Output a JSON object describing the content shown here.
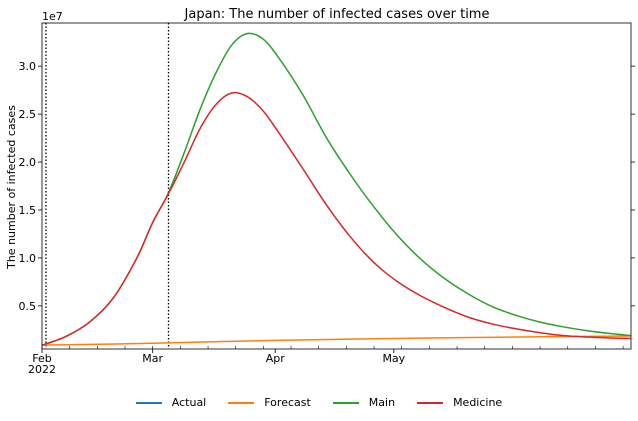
{
  "chart_data": {
    "type": "line",
    "title": "Japan: The number of infected cases over time",
    "xlabel": "",
    "ylabel": "The number of infected cases",
    "y_offset_label": "1e7",
    "x_range": [
      "2022-02-01",
      "2022-06-30"
    ],
    "ylim": [
      0.05,
      3.45
    ],
    "y_scale_factor": 10000000,
    "y_ticks": [
      0.5,
      1.0,
      1.5,
      2.0,
      2.5,
      3.0
    ],
    "x_ticks": [
      {
        "date": "2022-02-01",
        "label": "Feb",
        "sublabel": "2022"
      },
      {
        "date": "2022-03-01",
        "label": "Mar",
        "sublabel": ""
      },
      {
        "date": "2022-04-01",
        "label": "Apr",
        "sublabel": ""
      },
      {
        "date": "2022-05-01",
        "label": "May",
        "sublabel": ""
      }
    ],
    "vlines": [
      "2022-02-02",
      "2022-03-05"
    ],
    "legend_position": "bottom",
    "series": [
      {
        "name": "Actual",
        "color": "#1f77b4",
        "points": []
      },
      {
        "name": "Forecast",
        "color": "#ff7f0e",
        "points": [
          [
            "2022-02-01",
            0.09
          ],
          [
            "2022-03-01",
            0.11
          ],
          [
            "2022-04-01",
            0.14
          ],
          [
            "2022-05-01",
            0.16
          ],
          [
            "2022-06-01",
            0.175
          ],
          [
            "2022-06-30",
            0.185
          ]
        ]
      },
      {
        "name": "Main",
        "color": "#2ca02c",
        "points": [
          [
            "2022-02-01",
            0.09
          ],
          [
            "2022-02-07",
            0.18
          ],
          [
            "2022-02-13",
            0.33
          ],
          [
            "2022-02-19",
            0.58
          ],
          [
            "2022-02-25",
            1.0
          ],
          [
            "2022-03-01",
            1.37
          ],
          [
            "2022-03-05",
            1.68
          ],
          [
            "2022-03-09",
            2.1
          ],
          [
            "2022-03-13",
            2.55
          ],
          [
            "2022-03-17",
            2.93
          ],
          [
            "2022-03-21",
            3.22
          ],
          [
            "2022-03-25",
            3.34
          ],
          [
            "2022-03-29",
            3.28
          ],
          [
            "2022-04-02",
            3.08
          ],
          [
            "2022-04-08",
            2.7
          ],
          [
            "2022-04-14",
            2.25
          ],
          [
            "2022-04-20",
            1.87
          ],
          [
            "2022-04-26",
            1.53
          ],
          [
            "2022-05-02",
            1.23
          ],
          [
            "2022-05-08",
            0.98
          ],
          [
            "2022-05-14",
            0.78
          ],
          [
            "2022-05-20",
            0.62
          ],
          [
            "2022-05-26",
            0.49
          ],
          [
            "2022-06-01",
            0.4
          ],
          [
            "2022-06-07",
            0.33
          ],
          [
            "2022-06-13",
            0.28
          ],
          [
            "2022-06-19",
            0.24
          ],
          [
            "2022-06-25",
            0.21
          ],
          [
            "2022-06-30",
            0.19
          ]
        ]
      },
      {
        "name": "Medicine",
        "color": "#d62728",
        "points": [
          [
            "2022-02-01",
            0.09
          ],
          [
            "2022-02-07",
            0.18
          ],
          [
            "2022-02-13",
            0.33
          ],
          [
            "2022-02-19",
            0.58
          ],
          [
            "2022-02-25",
            1.0
          ],
          [
            "2022-03-01",
            1.37
          ],
          [
            "2022-03-05",
            1.67
          ],
          [
            "2022-03-09",
            2.0
          ],
          [
            "2022-03-13",
            2.35
          ],
          [
            "2022-03-17",
            2.6
          ],
          [
            "2022-03-21",
            2.72
          ],
          [
            "2022-03-25",
            2.68
          ],
          [
            "2022-03-29",
            2.53
          ],
          [
            "2022-04-02",
            2.3
          ],
          [
            "2022-04-08",
            1.93
          ],
          [
            "2022-04-14",
            1.55
          ],
          [
            "2022-04-20",
            1.22
          ],
          [
            "2022-04-26",
            0.95
          ],
          [
            "2022-05-02",
            0.75
          ],
          [
            "2022-05-08",
            0.6
          ],
          [
            "2022-05-14",
            0.48
          ],
          [
            "2022-05-20",
            0.38
          ],
          [
            "2022-05-26",
            0.31
          ],
          [
            "2022-06-01",
            0.26
          ],
          [
            "2022-06-07",
            0.22
          ],
          [
            "2022-06-13",
            0.19
          ],
          [
            "2022-06-19",
            0.175
          ],
          [
            "2022-06-25",
            0.165
          ],
          [
            "2022-06-30",
            0.16
          ]
        ]
      }
    ]
  }
}
